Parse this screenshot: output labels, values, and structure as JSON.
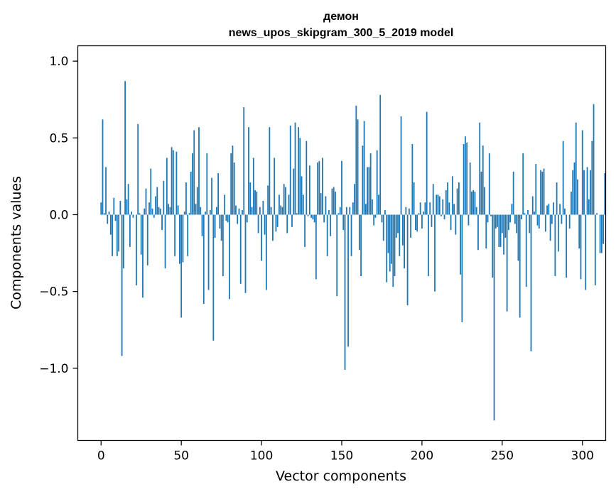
{
  "chart_data": {
    "type": "bar",
    "title": "демон",
    "subtitle": "news_upos_skipgram_300_5_2019 model",
    "xlabel": "Vector components",
    "ylabel": "Components values",
    "xlim": [
      -14.5,
      314.5
    ],
    "ylim": [
      -1.47,
      1.1
    ],
    "xticks": [
      0,
      50,
      100,
      150,
      200,
      250,
      300
    ],
    "xtick_labels": [
      "0",
      "50",
      "100",
      "150",
      "200",
      "250",
      "300"
    ],
    "yticks": [
      -1.0,
      -0.5,
      0.0,
      0.5,
      1.0
    ],
    "ytick_labels": [
      "−1.0",
      "−0.5",
      "0.0",
      "0.5",
      "1.0"
    ],
    "bar_color": "#1f77b4",
    "values": [
      0.08,
      0.62,
      0.01,
      0.31,
      -0.06,
      0.02,
      -0.13,
      -0.27,
      0.11,
      -0.04,
      -0.27,
      -0.24,
      0.09,
      -0.92,
      -0.35,
      0.87,
      0.1,
      0.2,
      -0.21,
      0.02,
      -0.02,
      0.0,
      -0.46,
      0.59,
      0.01,
      -0.26,
      -0.54,
      0.04,
      0.17,
      -0.33,
      0.08,
      0.3,
      0.04,
      -0.02,
      0.12,
      0.18,
      0.05,
      0.04,
      -0.1,
      0.22,
      -0.35,
      0.37,
      0.07,
      0.05,
      0.44,
      0.42,
      -0.27,
      0.41,
      0.06,
      -0.32,
      -0.67,
      -0.31,
      0.02,
      0.21,
      -0.27,
      0.01,
      0.28,
      0.4,
      0.55,
      0.07,
      0.18,
      0.57,
      0.05,
      -0.14,
      -0.58,
      0.02,
      0.4,
      -0.49,
      0.03,
      0.24,
      -0.82,
      -0.15,
      0.05,
      0.27,
      -0.09,
      -0.17,
      -0.4,
      0.13,
      -0.04,
      -0.05,
      -0.55,
      0.4,
      0.45,
      0.34,
      0.06,
      -0.06,
      0.04,
      -0.45,
      0.03,
      0.7,
      -0.51,
      -0.05,
      0.57,
      0.21,
      0.05,
      0.37,
      0.16,
      0.15,
      -0.12,
      0.05,
      -0.3,
      0.09,
      -0.13,
      -0.49,
      0.19,
      0.57,
      0.05,
      -0.17,
      0.37,
      -0.11,
      -0.08,
      0.13,
      0.06,
      0.05,
      0.2,
      0.18,
      -0.12,
      0.13,
      0.58,
      -0.08,
      0.3,
      0.6,
      0.01,
      0.57,
      0.5,
      0.25,
      0.13,
      -0.21,
      0.48,
      -0.01,
      0.32,
      -0.02,
      -0.03,
      -0.05,
      -0.42,
      0.34,
      0.35,
      0.14,
      0.37,
      -0.05,
      0.12,
      -0.27,
      0.03,
      -0.14,
      0.17,
      0.18,
      0.15,
      -0.53,
      0.01,
      0.05,
      0.35,
      -0.1,
      -1.01,
      0.05,
      -0.86,
      0.05,
      -0.27,
      0.08,
      0.2,
      0.71,
      0.62,
      -0.23,
      -0.4,
      0.45,
      0.61,
      0.07,
      0.31,
      0.31,
      0.4,
      0.1,
      -0.07,
      -0.02,
      0.42,
      0.13,
      0.78,
      -0.05,
      -0.17,
      0.03,
      -0.44,
      -0.25,
      -0.37,
      -0.32,
      -0.47,
      -0.4,
      -0.15,
      -0.12,
      -0.27,
      0.64,
      -0.2,
      -0.35,
      0.05,
      -0.59,
      0.04,
      -0.15,
      0.46,
      0.21,
      -0.1,
      -0.11,
      0.01,
      0.08,
      -0.09,
      0.02,
      0.08,
      0.67,
      -0.4,
      0.08,
      -0.08,
      0.2,
      -0.5,
      0.13,
      0.13,
      0.12,
      -0.01,
      0.1,
      -0.03,
      0.16,
      0.21,
      0.08,
      -0.1,
      0.25,
      0.07,
      -0.13,
      0.17,
      0.21,
      -0.39,
      -0.7,
      0.46,
      0.51,
      0.47,
      -0.07,
      0.34,
      0.15,
      0.16,
      0.15,
      0.05,
      -0.23,
      0.6,
      0.28,
      0.45,
      0.18,
      -0.22,
      -0.05,
      0.4,
      -0.01,
      -0.41,
      -1.34,
      -0.09,
      -0.08,
      -0.21,
      -0.21,
      -0.12,
      -0.26,
      -0.15,
      -0.63,
      -0.1,
      -0.05,
      0.07,
      0.28,
      -0.06,
      -0.12,
      -0.3,
      -0.67,
      -0.03,
      0.4,
      0.01,
      -0.47,
      0.03,
      -0.12,
      -0.89,
      0.12,
      0.02,
      0.33,
      -0.07,
      -0.09,
      0.29,
      0.28,
      0.3,
      -0.11,
      0.06,
      0.07,
      -0.17,
      -0.06,
      0.08,
      -0.4,
      0.21,
      -0.24,
      0.07,
      -0.06,
      0.48,
      0.04,
      -0.41,
      0.0,
      -0.09,
      0.15,
      0.29,
      0.34,
      0.6,
      0.23,
      -0.22,
      -0.42,
      0.55,
      0.29,
      -0.49,
      0.31,
      0.1,
      0.29,
      0.48,
      0.72,
      -0.46,
      0.01,
      0.0,
      -0.25,
      -0.25,
      -0.19,
      0.27
    ]
  }
}
